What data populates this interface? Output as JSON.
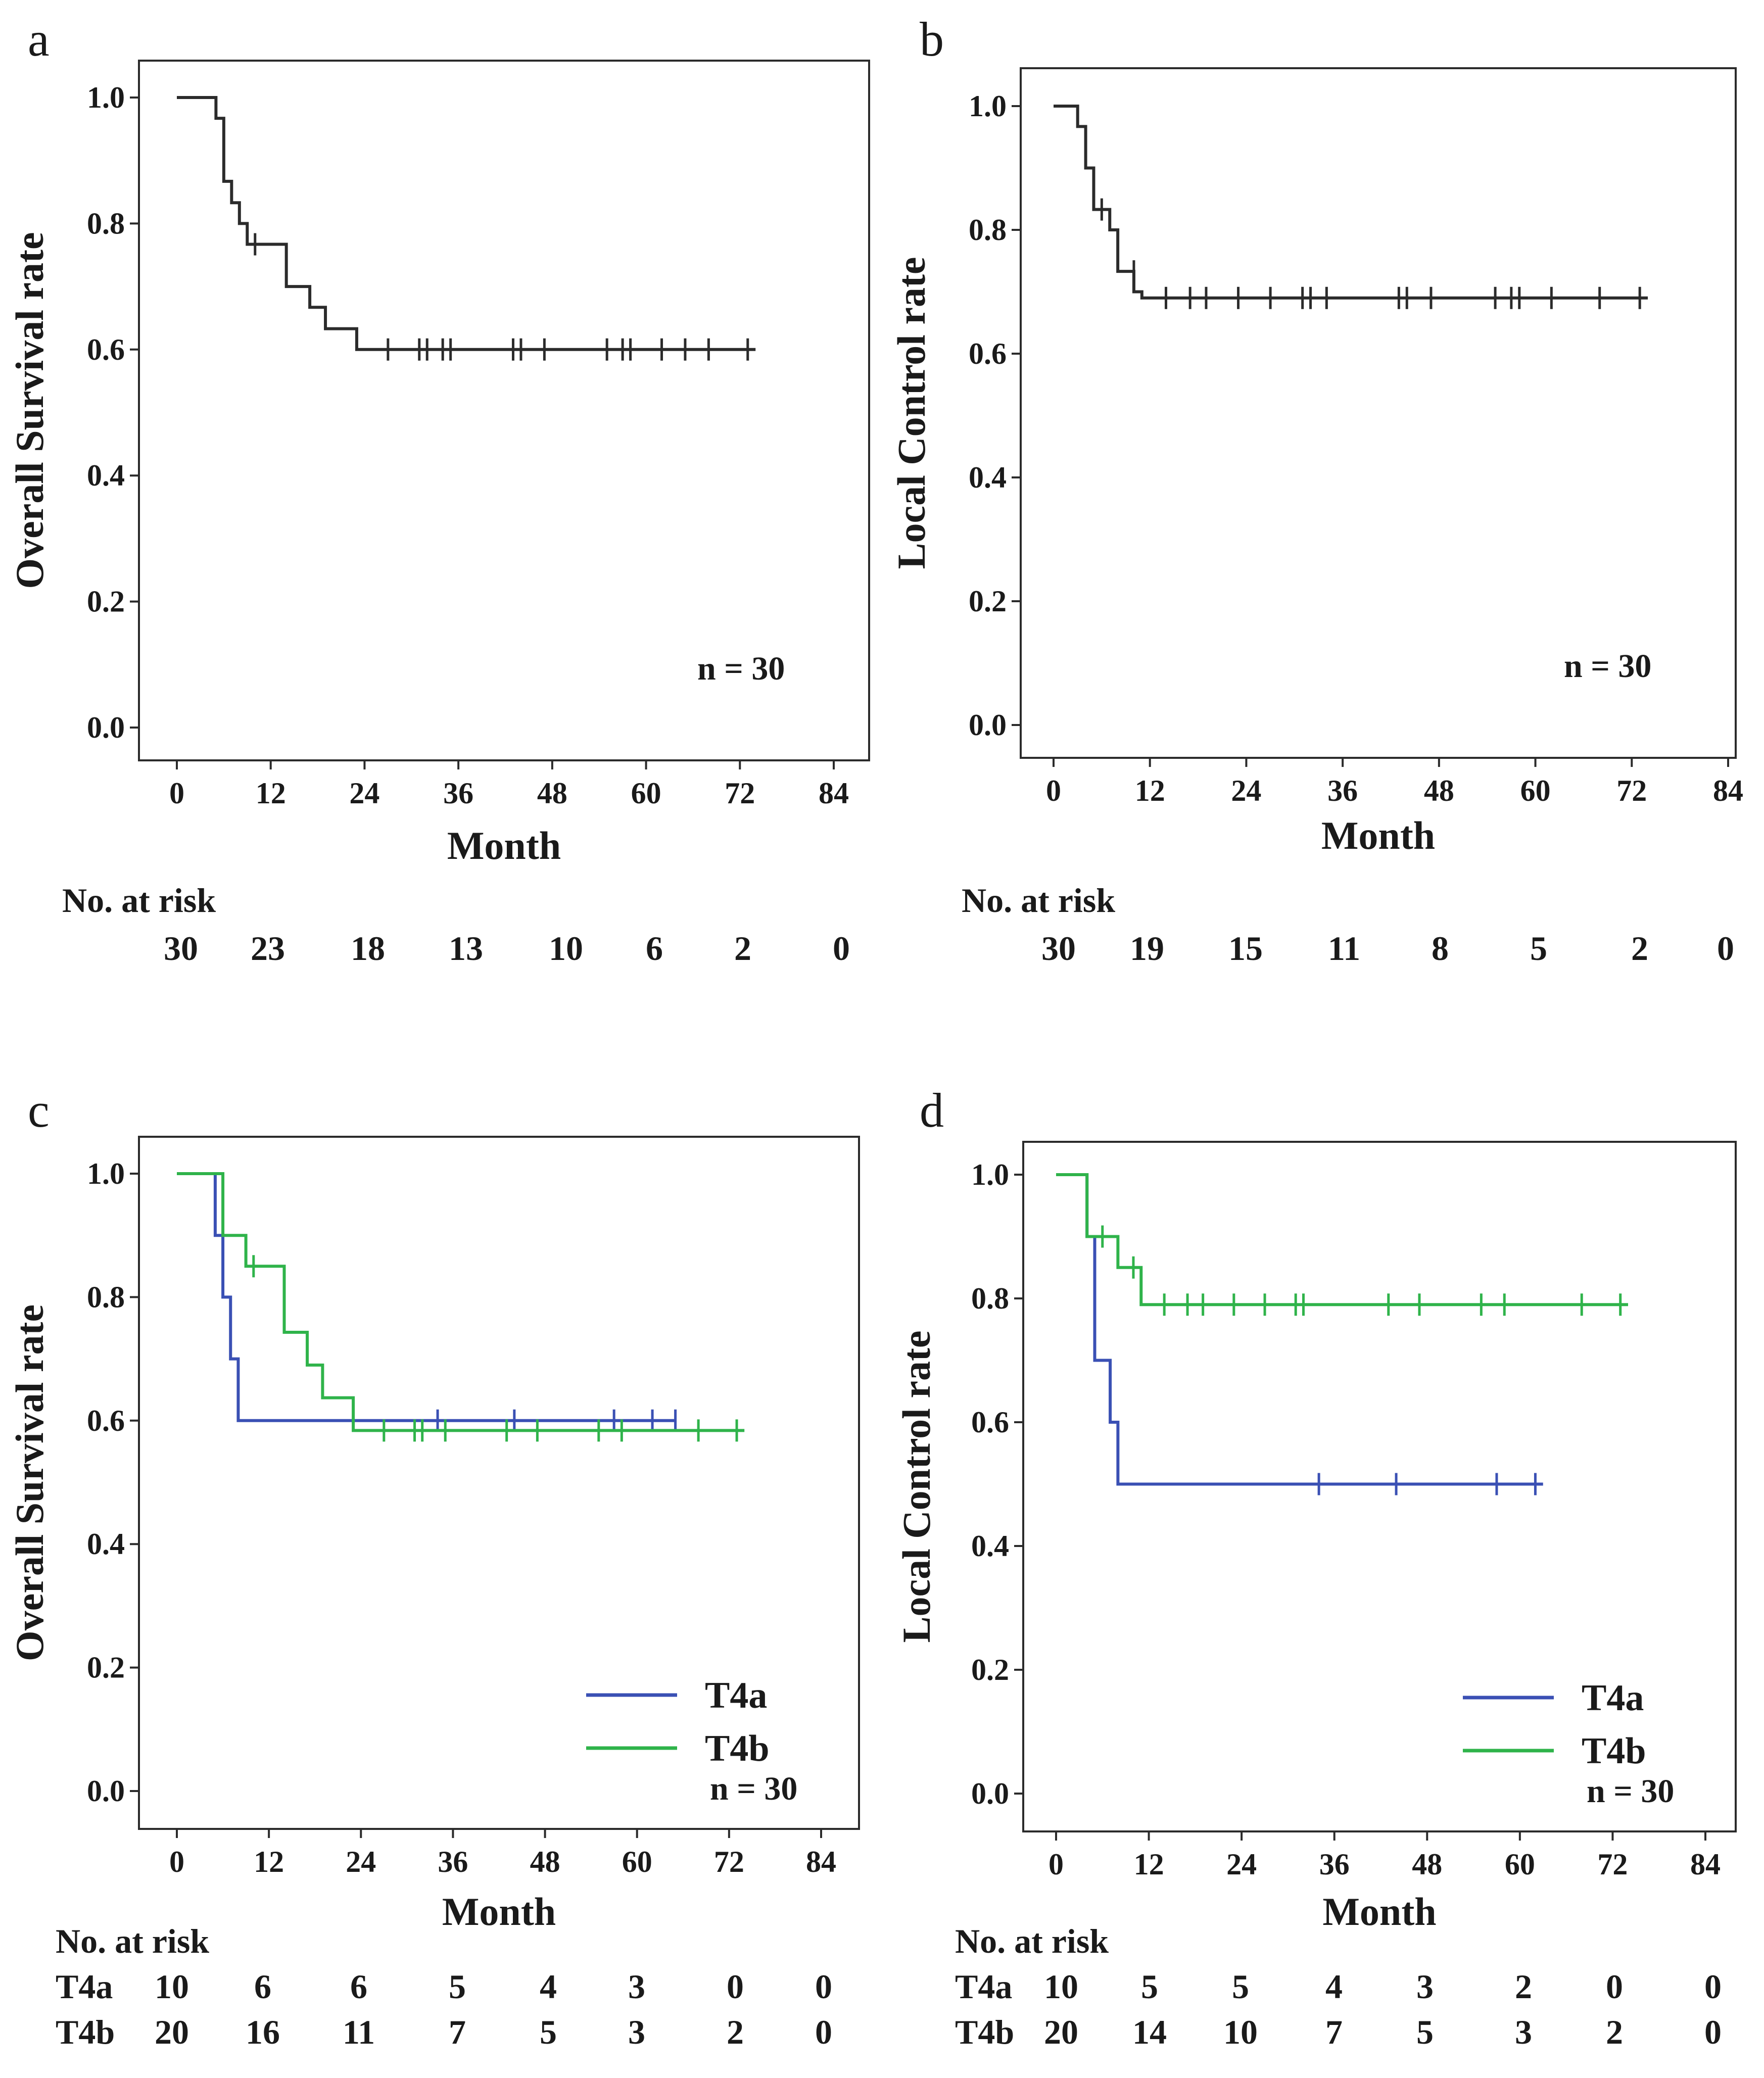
{
  "chart_data": [
    {
      "panel": "a",
      "type": "line",
      "subtype": "kaplan-meier",
      "xlabel": "Month",
      "ylabel": "Overall Survival rate",
      "xlim": [
        0,
        84
      ],
      "ylim": [
        0,
        1
      ],
      "xticks": [
        0,
        12,
        24,
        36,
        48,
        60,
        72,
        84
      ],
      "yticks": [
        0.0,
        0.2,
        0.4,
        0.6,
        0.8,
        1.0
      ],
      "ytick_labels": [
        "0.0",
        "0.2",
        "0.4",
        "0.6",
        "0.8",
        "1.0"
      ],
      "annotation": "n = 30",
      "legend": null,
      "series": [
        {
          "name": "",
          "color": "#2b2b2b",
          "steps": [
            [
              0,
              1.0
            ],
            [
              5,
              0.967
            ],
            [
              6,
              0.867
            ],
            [
              7,
              0.833
            ],
            [
              8,
              0.8
            ],
            [
              9,
              0.767
            ],
            [
              14,
              0.7
            ],
            [
              17,
              0.667
            ],
            [
              19,
              0.633
            ],
            [
              23,
              0.6
            ],
            [
              74,
              0.6
            ]
          ],
          "censored": [
            [
              10,
              0.767
            ],
            [
              27,
              0.6
            ],
            [
              31,
              0.6
            ],
            [
              32,
              0.6
            ],
            [
              34,
              0.6
            ],
            [
              35,
              0.6
            ],
            [
              43,
              0.6
            ],
            [
              44,
              0.6
            ],
            [
              47,
              0.6
            ],
            [
              55,
              0.6
            ],
            [
              57,
              0.6
            ],
            [
              58,
              0.6
            ],
            [
              62,
              0.6
            ],
            [
              65,
              0.6
            ],
            [
              68,
              0.6
            ],
            [
              73,
              0.6
            ]
          ]
        }
      ],
      "risk_table": {
        "title": "No. at risk",
        "rows": [
          {
            "label": "",
            "values": [
              "30",
              "23",
              "18",
              "13",
              "10",
              "6",
              "2",
              "0"
            ]
          }
        ]
      }
    },
    {
      "panel": "b",
      "type": "line",
      "subtype": "kaplan-meier",
      "xlabel": "Month",
      "ylabel": "Local Control rate",
      "xlim": [
        0,
        84
      ],
      "ylim": [
        0,
        1
      ],
      "xticks": [
        0,
        12,
        24,
        36,
        48,
        60,
        72,
        84
      ],
      "yticks": [
        0.0,
        0.2,
        0.4,
        0.6,
        0.8,
        1.0
      ],
      "ytick_labels": [
        "0.0",
        "0.2",
        "0.4",
        "0.6",
        "0.8",
        "1.0"
      ],
      "annotation": "n = 30",
      "legend": null,
      "series": [
        {
          "name": "",
          "color": "#2b2b2b",
          "steps": [
            [
              0,
              1.0
            ],
            [
              3,
              0.967
            ],
            [
              4,
              0.9
            ],
            [
              5,
              0.833
            ],
            [
              7,
              0.8
            ],
            [
              8,
              0.733
            ],
            [
              10,
              0.7
            ],
            [
              11,
              0.69
            ],
            [
              74,
              0.69
            ]
          ],
          "censored": [
            [
              6,
              0.833
            ],
            [
              10,
              0.733
            ],
            [
              14,
              0.69
            ],
            [
              17,
              0.69
            ],
            [
              19,
              0.69
            ],
            [
              23,
              0.69
            ],
            [
              27,
              0.69
            ],
            [
              31,
              0.69
            ],
            [
              32,
              0.69
            ],
            [
              34,
              0.69
            ],
            [
              43,
              0.69
            ],
            [
              44,
              0.69
            ],
            [
              47,
              0.69
            ],
            [
              55,
              0.69
            ],
            [
              57,
              0.69
            ],
            [
              58,
              0.69
            ],
            [
              62,
              0.69
            ],
            [
              68,
              0.69
            ],
            [
              73,
              0.69
            ]
          ]
        }
      ],
      "risk_table": {
        "title": "No. at risk",
        "rows": [
          {
            "label": "",
            "values": [
              "30",
              "19",
              "15",
              "11",
              "8",
              "5",
              "2",
              "0"
            ]
          }
        ]
      }
    },
    {
      "panel": "c",
      "type": "line",
      "subtype": "kaplan-meier",
      "xlabel": "Month",
      "ylabel": "Overall Survival rate",
      "xlim": [
        0,
        84
      ],
      "ylim": [
        0,
        1
      ],
      "xticks": [
        0,
        12,
        24,
        36,
        48,
        60,
        72,
        84
      ],
      "yticks": [
        0.0,
        0.2,
        0.4,
        0.6,
        0.8,
        1.0
      ],
      "ytick_labels": [
        "0.0",
        "0.2",
        "0.4",
        "0.6",
        "0.8",
        "1.0"
      ],
      "annotation": "n = 30",
      "legend": "bottom-right",
      "series": [
        {
          "name": "T4a",
          "color": "#3a50b4",
          "steps": [
            [
              0,
              1.0
            ],
            [
              5,
              0.9
            ],
            [
              6,
              0.8
            ],
            [
              7,
              0.7
            ],
            [
              8,
              0.6
            ],
            [
              65,
              0.6
            ]
          ],
          "censored": [
            [
              34,
              0.6
            ],
            [
              44,
              0.6
            ],
            [
              57,
              0.6
            ],
            [
              62,
              0.6
            ],
            [
              65,
              0.6
            ]
          ]
        },
        {
          "name": "T4b",
          "color": "#2fb34a",
          "steps": [
            [
              0,
              1.0
            ],
            [
              6,
              0.9
            ],
            [
              9,
              0.85
            ],
            [
              14,
              0.743
            ],
            [
              17,
              0.69
            ],
            [
              19,
              0.637
            ],
            [
              23,
              0.584
            ],
            [
              74,
              0.584
            ]
          ],
          "censored": [
            [
              10,
              0.85
            ],
            [
              27,
              0.584
            ],
            [
              31,
              0.584
            ],
            [
              32,
              0.584
            ],
            [
              35,
              0.584
            ],
            [
              43,
              0.584
            ],
            [
              47,
              0.584
            ],
            [
              55,
              0.584
            ],
            [
              58,
              0.584
            ],
            [
              68,
              0.584
            ],
            [
              73,
              0.584
            ]
          ]
        }
      ],
      "risk_table": {
        "title": "No. at risk",
        "rows": [
          {
            "label": "T4a",
            "values": [
              "10",
              "6",
              "6",
              "5",
              "4",
              "3",
              "0",
              "0"
            ]
          },
          {
            "label": "T4b",
            "values": [
              "20",
              "16",
              "11",
              "7",
              "5",
              "3",
              "2",
              "0"
            ]
          }
        ]
      }
    },
    {
      "panel": "d",
      "type": "line",
      "subtype": "kaplan-meier",
      "xlabel": "Month",
      "ylabel": "Local Control rate",
      "xlim": [
        0,
        84
      ],
      "ylim": [
        0,
        1
      ],
      "xticks": [
        0,
        12,
        24,
        36,
        48,
        60,
        72,
        84
      ],
      "yticks": [
        0.0,
        0.2,
        0.4,
        0.6,
        0.8,
        1.0
      ],
      "ytick_labels": [
        "0.0",
        "0.2",
        "0.4",
        "0.6",
        "0.8",
        "1.0"
      ],
      "annotation": "n = 30",
      "legend": "bottom-right",
      "series": [
        {
          "name": "T4a",
          "color": "#3a50b4",
          "steps": [
            [
              0,
              1.0
            ],
            [
              4,
              0.9
            ],
            [
              5,
              0.7
            ],
            [
              7,
              0.6
            ],
            [
              8,
              0.5
            ],
            [
              63,
              0.5
            ]
          ],
          "censored": [
            [
              34,
              0.5
            ],
            [
              44,
              0.5
            ],
            [
              57,
              0.5
            ],
            [
              62,
              0.5
            ]
          ]
        },
        {
          "name": "T4b",
          "color": "#2fb34a",
          "steps": [
            [
              0,
              1.0
            ],
            [
              4,
              0.9
            ],
            [
              8,
              0.85
            ],
            [
              11,
              0.79
            ],
            [
              74,
              0.79
            ]
          ],
          "censored": [
            [
              6,
              0.9
            ],
            [
              10,
              0.85
            ],
            [
              14,
              0.79
            ],
            [
              17,
              0.79
            ],
            [
              19,
              0.79
            ],
            [
              23,
              0.79
            ],
            [
              27,
              0.79
            ],
            [
              31,
              0.79
            ],
            [
              32,
              0.79
            ],
            [
              43,
              0.79
            ],
            [
              47,
              0.79
            ],
            [
              55,
              0.79
            ],
            [
              58,
              0.79
            ],
            [
              68,
              0.79
            ],
            [
              73,
              0.79
            ]
          ]
        }
      ],
      "risk_table": {
        "title": "No. at risk",
        "rows": [
          {
            "label": "T4a",
            "values": [
              "10",
              "5",
              "5",
              "4",
              "3",
              "2",
              "0",
              "0"
            ]
          },
          {
            "label": "T4b",
            "values": [
              "20",
              "14",
              "10",
              "7",
              "5",
              "3",
              "2",
              "0"
            ]
          }
        ]
      }
    }
  ]
}
